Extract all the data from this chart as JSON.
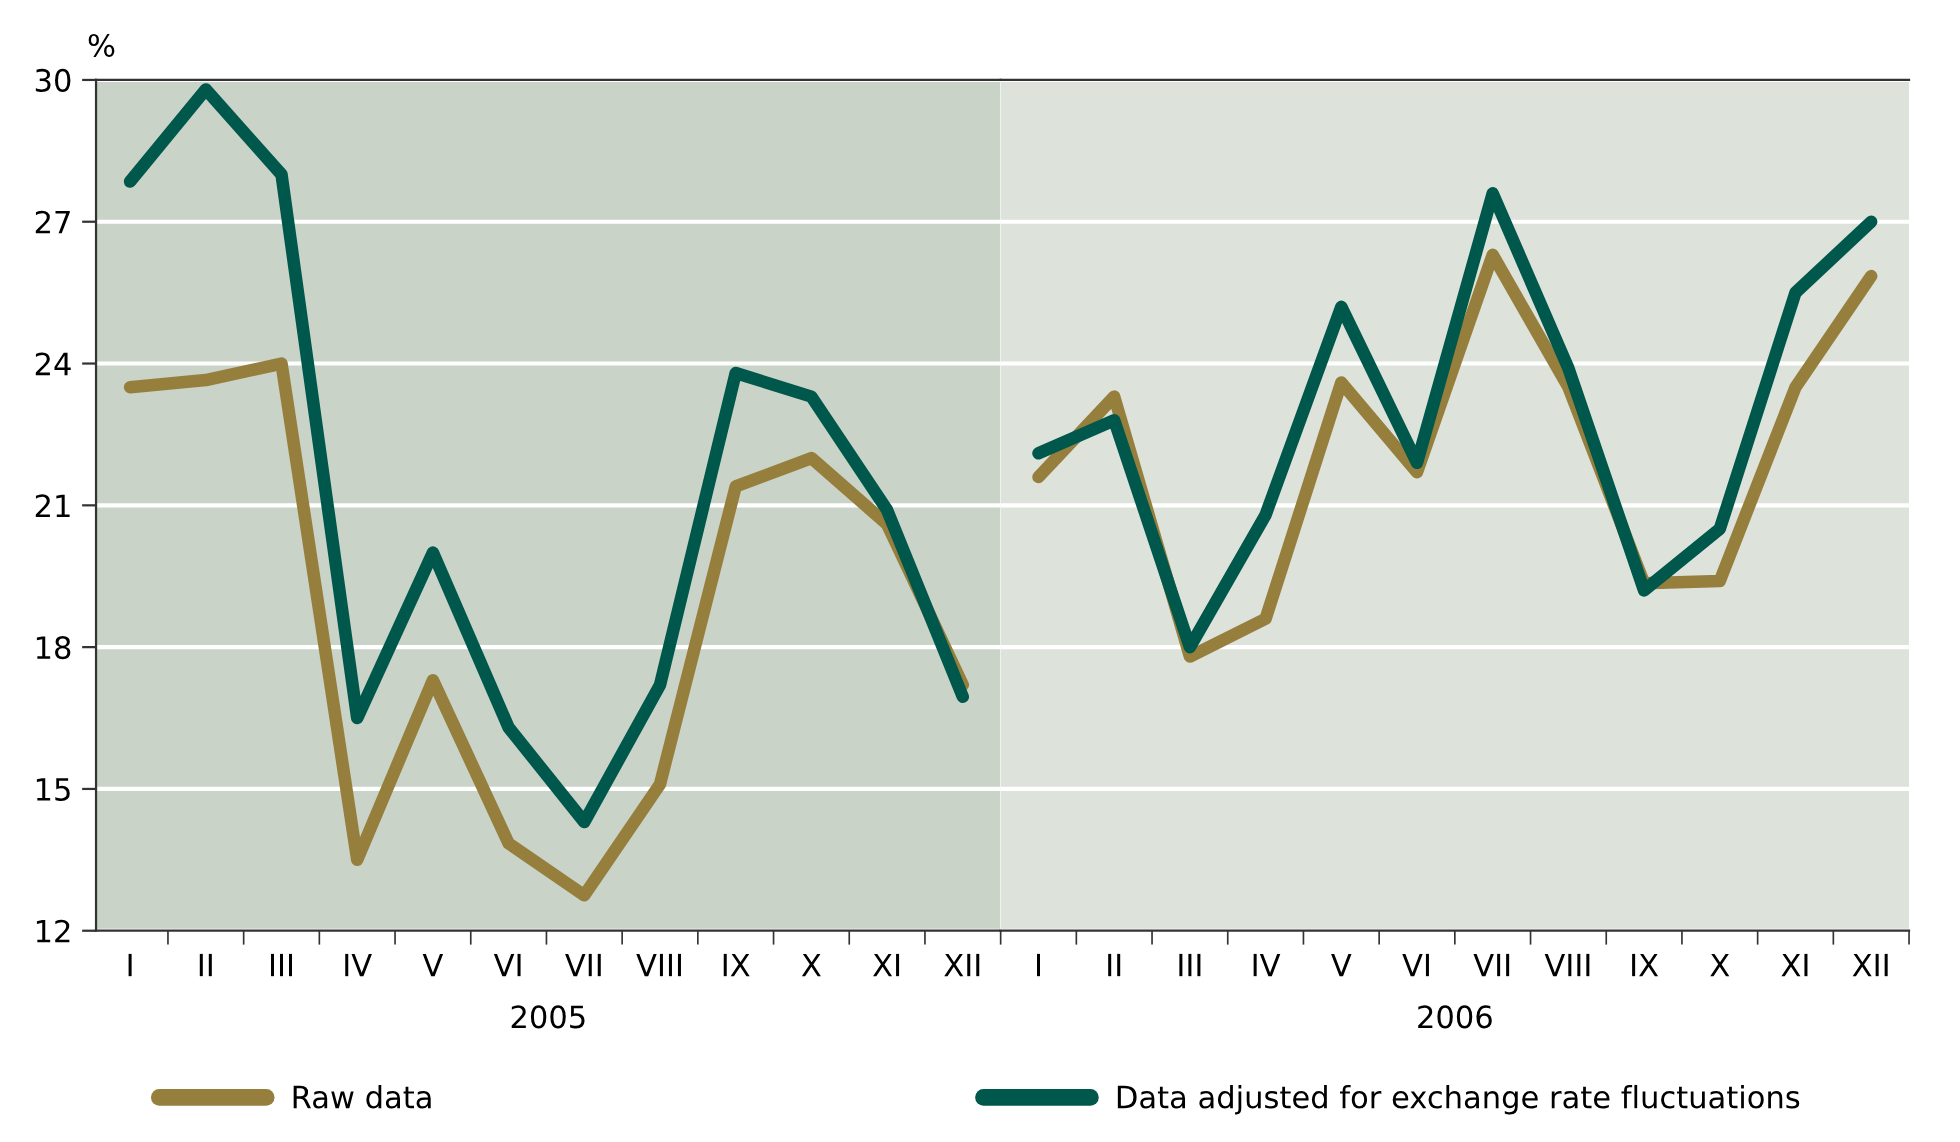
{
  "chart_data": [
    {
      "type": "line",
      "ylabel": "%",
      "xlabel": "2005",
      "categories": [
        "I",
        "II",
        "III",
        "IV",
        "V",
        "VI",
        "VII",
        "VIII",
        "IX",
        "X",
        "XI",
        "XII"
      ],
      "series": [
        {
          "name": "Raw data",
          "color": "#967f3c",
          "values": [
            23.5,
            23.65,
            24.0,
            13.5,
            17.3,
            13.85,
            12.75,
            15.1,
            21.4,
            22.0,
            20.6,
            17.2
          ]
        },
        {
          "name": "Data adjusted for exchange rate fluctuations",
          "color": "#00574b",
          "values": [
            27.85,
            29.8,
            28.0,
            16.5,
            20.0,
            16.3,
            14.3,
            17.2,
            23.8,
            23.3,
            20.9,
            16.95
          ]
        }
      ],
      "ylim": [
        12,
        30
      ],
      "yticks": [
        12,
        15,
        18,
        21,
        24,
        27,
        30
      ],
      "bands": [
        {
          "axis": "x",
          "from": "I",
          "to": "XII",
          "color": "#c9d3c7"
        }
      ],
      "grid": "y",
      "legend": "bottom",
      "marker": "none",
      "line_style": "solid"
    },
    {
      "type": "line",
      "xlabel": "2006",
      "categories": [
        "I",
        "II",
        "III",
        "IV",
        "V",
        "VI",
        "VII",
        "VIII",
        "IX",
        "X",
        "XI",
        "XII"
      ],
      "series": [
        {
          "color": "#967f3c",
          "values": [
            21.6,
            23.3,
            17.8,
            18.6,
            23.6,
            21.7,
            26.3,
            23.5,
            19.35,
            19.4,
            23.5,
            25.85
          ]
        },
        {
          "color": "#00574b",
          "values": [
            22.1,
            22.8,
            18.0,
            20.8,
            25.2,
            21.9,
            27.6,
            23.9,
            19.2,
            20.5,
            25.5,
            27.0
          ]
        }
      ],
      "ylim": [
        12,
        30
      ],
      "yticks": [
        12,
        15,
        18,
        21,
        24,
        27,
        30
      ],
      "bands": [
        {
          "axis": "x",
          "from": "I",
          "to": "XII",
          "color": "#dde2da"
        }
      ],
      "grid": "y",
      "tick_labels": "x",
      "marker": "none",
      "line_style": "solid"
    }
  ]
}
